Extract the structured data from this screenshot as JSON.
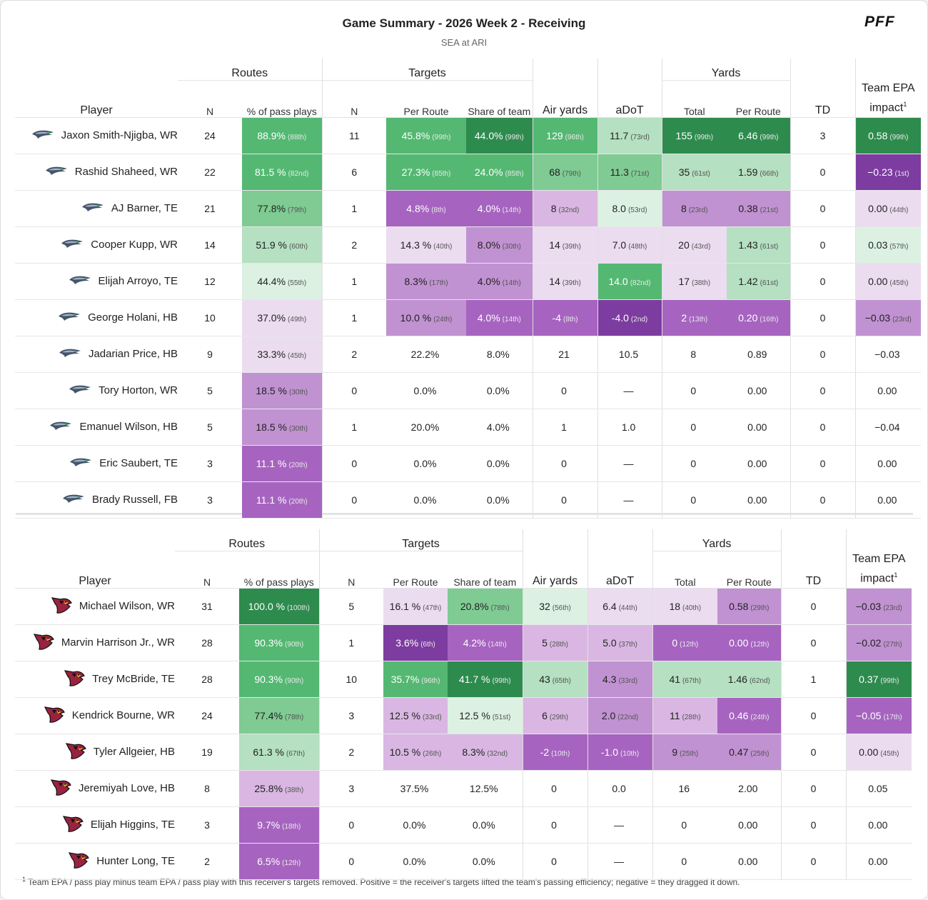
{
  "title": "Game Summary - 2026 Week 2 - Receiving",
  "subtitle": "SEA at ARI",
  "brand": "PFF",
  "header": {
    "player": "Player",
    "routes": "Routes",
    "targets": "Targets",
    "yards": "Yards",
    "n": "N",
    "pct_pass_plays": "% of pass plays",
    "per_route": "Per Route",
    "share_of_team": "Share of team",
    "air_yards": "Air yards",
    "adot": "aDoT",
    "total": "Total",
    "td": "TD",
    "team_epa_line1": "Team EPA",
    "team_epa_line2": "impact",
    "footnote_mark": "1"
  },
  "colors": {
    "green_dark": "#2e8b4e",
    "green_mid": "#54b872",
    "green_light": "#7fcb93",
    "green_pale": "#b5e0c1",
    "green_faint": "#dcf1e2",
    "purple_faint": "#ecdcf0",
    "purple_pale": "#d9b7e2",
    "purple_light": "#c192d1",
    "purple_mid": "#a664c0",
    "purple_dark": "#7d3ca0"
  },
  "teams": [
    {
      "team": "SEA",
      "logo_icon": "seahawks-logo-icon",
      "rows": [
        {
          "player": "Jaxon Smith-Njigba, WR",
          "routes_n": "24",
          "routes_pct": "88.9%",
          "routes_pct_rank": "(88th)",
          "targets_n": "11",
          "per_route": "45.8%",
          "per_route_rank": "(99th)",
          "share": "44.0%",
          "share_rank": "(99th)",
          "air_yards": "129",
          "air_yards_rank": "(96th)",
          "adot": "11.7",
          "adot_rank": "(73rd)",
          "yards_total": "155",
          "yards_total_rank": "(99th)",
          "yards_per_route": "6.46",
          "yards_per_route_rank": "(99th)",
          "td": "3",
          "epa": "0.58",
          "epa_rank": "(99th)"
        },
        {
          "player": "Rashid Shaheed, WR",
          "routes_n": "22",
          "routes_pct": "81.5 %",
          "routes_pct_rank": "(82nd)",
          "targets_n": "6",
          "per_route": "27.3%",
          "per_route_rank": "(85th)",
          "share": "24.0%",
          "share_rank": "(85th)",
          "air_yards": "68",
          "air_yards_rank": "(79th)",
          "adot": "11.3",
          "adot_rank": "(71st)",
          "yards_total": "35",
          "yards_total_rank": "(61st)",
          "yards_per_route": "1.59",
          "yards_per_route_rank": "(66th)",
          "td": "0",
          "epa": "−0.23",
          "epa_rank": "(1st)"
        },
        {
          "player": "AJ Barner, TE",
          "routes_n": "21",
          "routes_pct": "77.8%",
          "routes_pct_rank": "(79th)",
          "targets_n": "1",
          "per_route": "4.8%",
          "per_route_rank": "(8th)",
          "share": "4.0%",
          "share_rank": "(14th)",
          "air_yards": "8",
          "air_yards_rank": "(32nd)",
          "adot": "8.0",
          "adot_rank": "(53rd)",
          "yards_total": "8",
          "yards_total_rank": "(23rd)",
          "yards_per_route": "0.38",
          "yards_per_route_rank": "(21st)",
          "td": "0",
          "epa": "0.00",
          "epa_rank": "(44th)"
        },
        {
          "player": "Cooper Kupp, WR",
          "routes_n": "14",
          "routes_pct": "51.9 %",
          "routes_pct_rank": "(60th)",
          "targets_n": "2",
          "per_route": "14.3 %",
          "per_route_rank": "(40th)",
          "share": "8.0%",
          "share_rank": "(30th)",
          "air_yards": "14",
          "air_yards_rank": "(39th)",
          "adot": "7.0",
          "adot_rank": "(48th)",
          "yards_total": "20",
          "yards_total_rank": "(43rd)",
          "yards_per_route": "1.43",
          "yards_per_route_rank": "(61st)",
          "td": "0",
          "epa": "0.03",
          "epa_rank": "(57th)"
        },
        {
          "player": "Elijah Arroyo, TE",
          "routes_n": "12",
          "routes_pct": "44.4%",
          "routes_pct_rank": "(55th)",
          "targets_n": "1",
          "per_route": "8.3%",
          "per_route_rank": "(17th)",
          "share": "4.0%",
          "share_rank": "(14th)",
          "air_yards": "14",
          "air_yards_rank": "(39th)",
          "adot": "14.0",
          "adot_rank": "(82nd)",
          "yards_total": "17",
          "yards_total_rank": "(38th)",
          "yards_per_route": "1.42",
          "yards_per_route_rank": "(61st)",
          "td": "0",
          "epa": "0.00",
          "epa_rank": "(45th)"
        },
        {
          "player": "George Holani, HB",
          "routes_n": "10",
          "routes_pct": "37.0%",
          "routes_pct_rank": "(49th)",
          "targets_n": "1",
          "per_route": "10.0 %",
          "per_route_rank": "(24th)",
          "share": "4.0%",
          "share_rank": "(14th)",
          "air_yards": "-4",
          "air_yards_rank": "(8th)",
          "adot": "-4.0",
          "adot_rank": "(2nd)",
          "yards_total": "2",
          "yards_total_rank": "(13th)",
          "yards_per_route": "0.20",
          "yards_per_route_rank": "(16th)",
          "td": "0",
          "epa": "−0.03",
          "epa_rank": "(23rd)"
        },
        {
          "player": "Jadarian Price, HB",
          "routes_n": "9",
          "routes_pct": "33.3%",
          "routes_pct_rank": "(45th)",
          "targets_n": "2",
          "per_route": "22.2%",
          "per_route_rank": "",
          "share": "8.0%",
          "share_rank": "",
          "air_yards": "21",
          "air_yards_rank": "",
          "adot": "10.5",
          "adot_rank": "",
          "yards_total": "8",
          "yards_total_rank": "",
          "yards_per_route": "0.89",
          "yards_per_route_rank": "",
          "td": "0",
          "epa": "−0.03",
          "epa_rank": ""
        },
        {
          "player": "Tory Horton, WR",
          "routes_n": "5",
          "routes_pct": "18.5 %",
          "routes_pct_rank": "(30th)",
          "targets_n": "0",
          "per_route": "0.0%",
          "per_route_rank": "",
          "share": "0.0%",
          "share_rank": "",
          "air_yards": "0",
          "air_yards_rank": "",
          "adot": "—",
          "adot_rank": "",
          "yards_total": "0",
          "yards_total_rank": "",
          "yards_per_route": "0.00",
          "yards_per_route_rank": "",
          "td": "0",
          "epa": "0.00",
          "epa_rank": ""
        },
        {
          "player": "Emanuel Wilson, HB",
          "routes_n": "5",
          "routes_pct": "18.5 %",
          "routes_pct_rank": "(30th)",
          "targets_n": "1",
          "per_route": "20.0%",
          "per_route_rank": "",
          "share": "4.0%",
          "share_rank": "",
          "air_yards": "1",
          "air_yards_rank": "",
          "adot": "1.0",
          "adot_rank": "",
          "yards_total": "0",
          "yards_total_rank": "",
          "yards_per_route": "0.00",
          "yards_per_route_rank": "",
          "td": "0",
          "epa": "−0.04",
          "epa_rank": ""
        },
        {
          "player": "Eric Saubert, TE",
          "routes_n": "3",
          "routes_pct": "11.1 %",
          "routes_pct_rank": "(20th)",
          "targets_n": "0",
          "per_route": "0.0%",
          "per_route_rank": "",
          "share": "0.0%",
          "share_rank": "",
          "air_yards": "0",
          "air_yards_rank": "",
          "adot": "—",
          "adot_rank": "",
          "yards_total": "0",
          "yards_total_rank": "",
          "yards_per_route": "0.00",
          "yards_per_route_rank": "",
          "td": "0",
          "epa": "0.00",
          "epa_rank": ""
        },
        {
          "player": "Brady Russell, FB",
          "routes_n": "3",
          "routes_pct": "11.1 %",
          "routes_pct_rank": "(20th)",
          "targets_n": "0",
          "per_route": "0.0%",
          "per_route_rank": "",
          "share": "0.0%",
          "share_rank": "",
          "air_yards": "0",
          "air_yards_rank": "",
          "adot": "—",
          "adot_rank": "",
          "yards_total": "0",
          "yards_total_rank": "",
          "yards_per_route": "0.00",
          "yards_per_route_rank": "",
          "td": "0",
          "epa": "0.00",
          "epa_rank": ""
        }
      ]
    },
    {
      "team": "ARI",
      "logo_icon": "cardinals-logo-icon",
      "rows": [
        {
          "player": "Michael Wilson, WR",
          "routes_n": "31",
          "routes_pct": "100.0 %",
          "routes_pct_rank": "(100th)",
          "targets_n": "5",
          "per_route": "16.1 %",
          "per_route_rank": "(47th)",
          "share": "20.8%",
          "share_rank": "(78th)",
          "air_yards": "32",
          "air_yards_rank": "(56th)",
          "adot": "6.4",
          "adot_rank": "(44th)",
          "yards_total": "18",
          "yards_total_rank": "(40th)",
          "yards_per_route": "0.58",
          "yards_per_route_rank": "(29th)",
          "td": "0",
          "epa": "−0.03",
          "epa_rank": "(23rd)"
        },
        {
          "player": "Marvin Harrison Jr., WR",
          "routes_n": "28",
          "routes_pct": "90.3%",
          "routes_pct_rank": "(90th)",
          "targets_n": "1",
          "per_route": "3.6%",
          "per_route_rank": "(6th)",
          "share": "4.2%",
          "share_rank": "(14th)",
          "air_yards": "5",
          "air_yards_rank": "(28th)",
          "adot": "5.0",
          "adot_rank": "(37th)",
          "yards_total": "0",
          "yards_total_rank": "(12th)",
          "yards_per_route": "0.00",
          "yards_per_route_rank": "(12th)",
          "td": "0",
          "epa": "−0.02",
          "epa_rank": "(27th)"
        },
        {
          "player": "Trey McBride, TE",
          "routes_n": "28",
          "routes_pct": "90.3%",
          "routes_pct_rank": "(90th)",
          "targets_n": "10",
          "per_route": "35.7%",
          "per_route_rank": "(96th)",
          "share": "41.7 %",
          "share_rank": "(99th)",
          "air_yards": "43",
          "air_yards_rank": "(65th)",
          "adot": "4.3",
          "adot_rank": "(33rd)",
          "yards_total": "41",
          "yards_total_rank": "(67th)",
          "yards_per_route": "1.46",
          "yards_per_route_rank": "(62nd)",
          "td": "1",
          "epa": "0.37",
          "epa_rank": "(99th)"
        },
        {
          "player": "Kendrick Bourne, WR",
          "routes_n": "24",
          "routes_pct": "77.4%",
          "routes_pct_rank": "(78th)",
          "targets_n": "3",
          "per_route": "12.5 %",
          "per_route_rank": "(33rd)",
          "share": "12.5 %",
          "share_rank": "(51st)",
          "air_yards": "6",
          "air_yards_rank": "(29th)",
          "adot": "2.0",
          "adot_rank": "(22nd)",
          "yards_total": "11",
          "yards_total_rank": "(28th)",
          "yards_per_route": "0.46",
          "yards_per_route_rank": "(24th)",
          "td": "0",
          "epa": "−0.05",
          "epa_rank": "(17th)"
        },
        {
          "player": "Tyler Allgeier, HB",
          "routes_n": "19",
          "routes_pct": "61.3 %",
          "routes_pct_rank": "(67th)",
          "targets_n": "2",
          "per_route": "10.5 %",
          "per_route_rank": "(26th)",
          "share": "8.3%",
          "share_rank": "(32nd)",
          "air_yards": "-2",
          "air_yards_rank": "(10th)",
          "adot": "-1.0",
          "adot_rank": "(10th)",
          "yards_total": "9",
          "yards_total_rank": "(25th)",
          "yards_per_route": "0.47",
          "yards_per_route_rank": "(25th)",
          "td": "0",
          "epa": "0.00",
          "epa_rank": "(45th)"
        },
        {
          "player": "Jeremiyah Love, HB",
          "routes_n": "8",
          "routes_pct": "25.8%",
          "routes_pct_rank": "(38th)",
          "targets_n": "3",
          "per_route": "37.5%",
          "per_route_rank": "",
          "share": "12.5%",
          "share_rank": "",
          "air_yards": "0",
          "air_yards_rank": "",
          "adot": "0.0",
          "adot_rank": "",
          "yards_total": "16",
          "yards_total_rank": "",
          "yards_per_route": "2.00",
          "yards_per_route_rank": "",
          "td": "0",
          "epa": "0.05",
          "epa_rank": ""
        },
        {
          "player": "Elijah Higgins, TE",
          "routes_n": "3",
          "routes_pct": "9.7%",
          "routes_pct_rank": "(18th)",
          "targets_n": "0",
          "per_route": "0.0%",
          "per_route_rank": "",
          "share": "0.0%",
          "share_rank": "",
          "air_yards": "0",
          "air_yards_rank": "",
          "adot": "—",
          "adot_rank": "",
          "yards_total": "0",
          "yards_total_rank": "",
          "yards_per_route": "0.00",
          "yards_per_route_rank": "",
          "td": "0",
          "epa": "0.00",
          "epa_rank": ""
        },
        {
          "player": "Hunter Long, TE",
          "routes_n": "2",
          "routes_pct": "6.5%",
          "routes_pct_rank": "(12th)",
          "targets_n": "0",
          "per_route": "0.0%",
          "per_route_rank": "",
          "share": "0.0%",
          "share_rank": "",
          "air_yards": "0",
          "air_yards_rank": "",
          "adot": "—",
          "adot_rank": "",
          "yards_total": "0",
          "yards_total_rank": "",
          "yards_per_route": "0.00",
          "yards_per_route_rank": "",
          "td": "0",
          "epa": "0.00",
          "epa_rank": ""
        }
      ]
    }
  ],
  "footnote": {
    "mark": "1",
    "text": "Team EPA / pass play minus team EPA / pass play with this receiver's targets removed. Positive = the receiver's targets lifted the team's passing efficiency; negative = they dragged it down."
  }
}
